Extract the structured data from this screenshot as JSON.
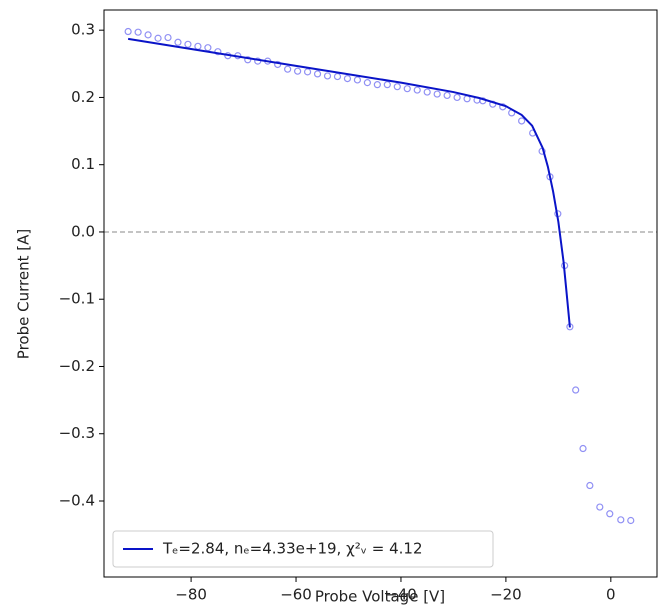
{
  "chart_data": {
    "type": "line",
    "xlabel": "Probe Voltage [V]",
    "ylabel": "Probe Current [A]",
    "xlim": [
      -96.6,
      8.8
    ],
    "ylim": [
      -0.513,
      0.33
    ],
    "xticks": [
      {
        "value": -80,
        "label": "−80"
      },
      {
        "value": -60,
        "label": "−60"
      },
      {
        "value": -40,
        "label": "−40"
      },
      {
        "value": -20,
        "label": "−20"
      },
      0
    ],
    "yticks": [
      {
        "value": -0.4,
        "label": "−0.4"
      },
      {
        "value": -0.3,
        "label": "−0.3"
      },
      {
        "value": -0.2,
        "label": "−0.2"
      },
      {
        "value": -0.1,
        "label": "−0.1"
      },
      {
        "value": 0,
        "label": "0.0"
      },
      0.1,
      0.2,
      0.3
    ],
    "hline": 0,
    "legend": "lower left",
    "series": [
      {
        "type": "scatter",
        "color": "#5555ee",
        "x": [
          -92,
          -90.1,
          -88.2,
          -86.3,
          -84.4,
          -82.5,
          -80.6,
          -78.7,
          -76.8,
          -74.9,
          -73,
          -71.1,
          -69.2,
          -67.3,
          -65.4,
          -63.5,
          -61.6,
          -59.7,
          -57.8,
          -55.9,
          -54,
          -52.1,
          -50.2,
          -48.3,
          -46.4,
          -44.5,
          -42.6,
          -40.7,
          -38.8,
          -36.9,
          -35,
          -33.1,
          -31.2,
          -29.3,
          -27.4,
          -25.5,
          -24.4,
          -22.5,
          -20.6,
          -18.9,
          -17,
          -14.9,
          -13.1,
          -11.6,
          -10.1,
          -8.8,
          -7.8,
          -6.7,
          -5.3,
          -4,
          -2.1,
          -0.2,
          1.9,
          3.8
        ],
        "values": [
          0.298,
          0.297,
          0.293,
          0.288,
          0.289,
          0.282,
          0.279,
          0.276,
          0.274,
          0.268,
          0.262,
          0.262,
          0.256,
          0.254,
          0.254,
          0.249,
          0.242,
          0.239,
          0.238,
          0.235,
          0.232,
          0.231,
          0.228,
          0.226,
          0.222,
          0.219,
          0.219,
          0.216,
          0.213,
          0.211,
          0.208,
          0.205,
          0.203,
          0.2,
          0.198,
          0.196,
          0.195,
          0.19,
          0.186,
          0.177,
          0.165,
          0.147,
          0.12,
          0.082,
          0.027,
          -0.05,
          -0.141,
          -0.235,
          -0.322,
          -0.377,
          -0.409,
          -0.419,
          -0.428,
          -0.429
        ]
      },
      {
        "type": "line",
        "color": "#0a14c8",
        "name": "Tₑ=2.84, nₑ=4.33e+19, χ²ᵥ = 4.12",
        "x": [
          -92,
          -80,
          -60,
          -40,
          -30,
          -25,
          -20,
          -17,
          -15,
          -13,
          -12,
          -11,
          -10,
          -9,
          -8.5,
          -7.8
        ],
        "values": [
          0.287,
          0.272,
          0.247,
          0.222,
          0.208,
          0.199,
          0.187,
          0.174,
          0.158,
          0.125,
          0.097,
          0.06,
          0.015,
          -0.045,
          -0.085,
          -0.142
        ]
      }
    ]
  }
}
